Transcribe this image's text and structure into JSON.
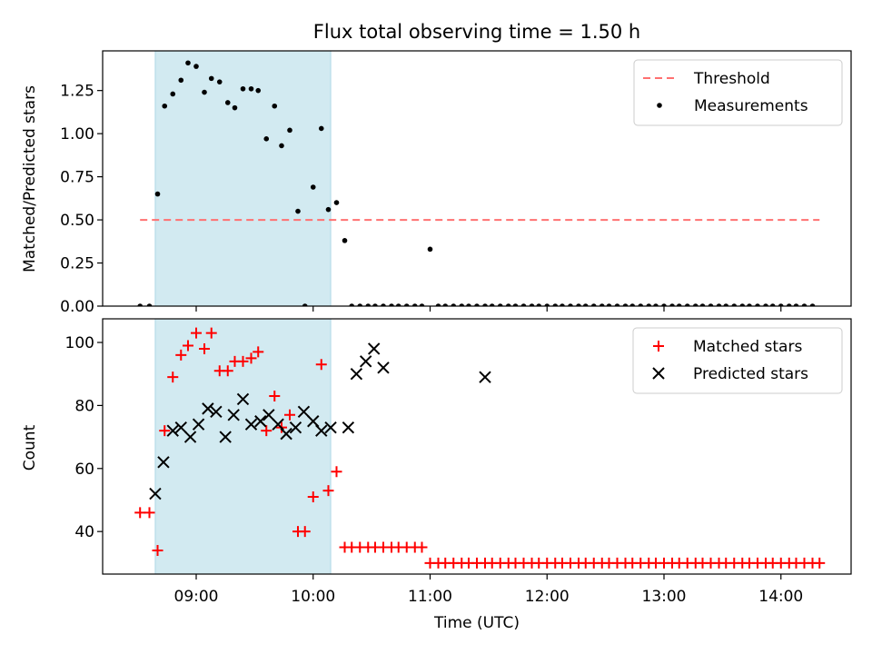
{
  "chart_data": {
    "title": "Flux total observing time = 1.50 h",
    "xlabel": "Time (UTC)",
    "x_ticks": [
      "09:00",
      "10:00",
      "11:00",
      "12:00",
      "13:00",
      "14:00"
    ],
    "x_tick_hours": [
      9,
      10,
      11,
      12,
      13,
      14
    ],
    "xlim_hours": [
      8.2,
      14.6
    ],
    "shaded_interval_hours": [
      8.65,
      10.15
    ],
    "colors": {
      "shade": "#add8e6",
      "threshold": "#ff7070",
      "matched": "#ff0000",
      "predicted": "#000000",
      "measurements": "#000000"
    },
    "panels": [
      {
        "type": "scatter",
        "ylabel": "Matched/Predicted stars",
        "ylim": [
          0,
          1.48
        ],
        "y_ticks": [
          "0.00",
          "0.25",
          "0.50",
          "0.75",
          "1.00",
          "1.25"
        ],
        "legend_position": "top-right",
        "series": [
          {
            "name": "Threshold",
            "type": "line",
            "style": "dashed",
            "x": [
              8.52,
              14.33
            ],
            "y": [
              0.5,
              0.5
            ]
          },
          {
            "name": "Measurements",
            "type": "scatter",
            "x": [
              8.52,
              8.6,
              8.67,
              8.73,
              8.8,
              8.87,
              8.93,
              9.0,
              9.07,
              9.13,
              9.2,
              9.27,
              9.33,
              9.4,
              9.47,
              9.53,
              9.6,
              9.67,
              9.73,
              9.8,
              9.87,
              9.93,
              10.0,
              10.07,
              10.13,
              10.2,
              10.27,
              10.33,
              10.4,
              10.47,
              10.53,
              10.6,
              10.67,
              10.73,
              10.8,
              10.87,
              10.93,
              11.0,
              11.07,
              11.13,
              11.2,
              11.27,
              11.33,
              11.4,
              11.47,
              11.53,
              11.6,
              11.67,
              11.73,
              11.8,
              11.87,
              11.93,
              12.0,
              12.07,
              12.13,
              12.2,
              12.27,
              12.33,
              12.4,
              12.47,
              12.53,
              12.6,
              12.67,
              12.73,
              12.8,
              12.87,
              12.93,
              13.0,
              13.07,
              13.13,
              13.2,
              13.27,
              13.33,
              13.4,
              13.47,
              13.53,
              13.6,
              13.67,
              13.73,
              13.8,
              13.87,
              13.93,
              14.0,
              14.07,
              14.13,
              14.2,
              14.27
            ],
            "y": [
              0,
              0,
              0.65,
              1.16,
              1.23,
              1.31,
              1.41,
              1.39,
              1.24,
              1.32,
              1.3,
              1.18,
              1.15,
              1.26,
              1.26,
              1.25,
              0.97,
              1.16,
              0.93,
              1.02,
              0.55,
              0,
              0.69,
              1.03,
              0.56,
              0.6,
              0.38,
              0,
              0,
              0,
              0,
              0,
              0,
              0,
              0,
              0,
              0,
              0.33,
              0,
              0,
              0,
              0,
              0,
              0,
              0,
              0,
              0,
              0,
              0,
              0,
              0,
              0,
              0,
              0,
              0,
              0,
              0,
              0,
              0,
              0,
              0,
              0,
              0,
              0,
              0,
              0,
              0,
              0,
              0,
              0,
              0,
              0,
              0,
              0,
              0,
              0,
              0,
              0,
              0,
              0,
              0,
              0,
              0,
              0,
              0,
              0,
              0
            ]
          }
        ]
      },
      {
        "type": "scatter",
        "ylabel": "Count",
        "ylim": [
          26.5,
          107.5
        ],
        "y_ticks": [
          "40",
          "60",
          "80",
          "100"
        ],
        "legend_position": "top-right",
        "series": [
          {
            "name": "Matched stars",
            "marker": "plus",
            "x": [
              8.52,
              8.6,
              8.67,
              8.73,
              8.8,
              8.87,
              8.93,
              9.0,
              9.07,
              9.13,
              9.2,
              9.27,
              9.33,
              9.4,
              9.47,
              9.53,
              9.6,
              9.67,
              9.73,
              9.8,
              9.87,
              9.93,
              10.0,
              10.07,
              10.13,
              10.2,
              10.27,
              10.33,
              10.4,
              10.47,
              10.53,
              10.6,
              10.67,
              10.73,
              10.8,
              10.87,
              10.93,
              11.0,
              11.07,
              11.13,
              11.2,
              11.27,
              11.33,
              11.4,
              11.47,
              11.53,
              11.6,
              11.67,
              11.73,
              11.8,
              11.87,
              11.93,
              12.0,
              12.07,
              12.13,
              12.2,
              12.27,
              12.33,
              12.4,
              12.47,
              12.53,
              12.6,
              12.67,
              12.73,
              12.8,
              12.87,
              12.93,
              13.0,
              13.07,
              13.13,
              13.2,
              13.27,
              13.33,
              13.4,
              13.47,
              13.53,
              13.6,
              13.67,
              13.73,
              13.8,
              13.87,
              13.93,
              14.0,
              14.07,
              14.13,
              14.2,
              14.27,
              14.33
            ],
            "y": [
              46,
              46,
              34,
              72,
              89,
              96,
              99,
              103,
              98,
              103,
              91,
              91,
              94,
              94,
              95,
              97,
              72,
              83,
              73,
              77,
              40,
              40,
              51,
              93,
              53,
              59,
              35,
              35,
              35,
              35,
              35,
              35,
              35,
              35,
              35,
              35,
              35,
              30,
              30,
              30,
              30,
              30,
              30,
              30,
              30,
              30,
              30,
              30,
              30,
              30,
              30,
              30,
              30,
              30,
              30,
              30,
              30,
              30,
              30,
              30,
              30,
              30,
              30,
              30,
              30,
              30,
              30,
              30,
              30,
              30,
              30,
              30,
              30,
              30,
              30,
              30,
              30,
              30,
              30,
              30,
              30,
              30,
              30,
              30,
              30,
              30,
              30,
              30
            ]
          },
          {
            "name": "Predicted stars",
            "marker": "x",
            "x": [
              8.65,
              8.72,
              8.8,
              8.87,
              8.95,
              9.02,
              9.1,
              9.17,
              9.25,
              9.32,
              9.4,
              9.47,
              9.55,
              9.62,
              9.7,
              9.77,
              9.85,
              9.92,
              10.0,
              10.07,
              10.15,
              10.3,
              10.37,
              10.45,
              10.52,
              10.6,
              11.47
            ],
            "y": [
              52,
              62,
              72,
              73,
              70,
              74,
              79,
              78,
              70,
              77,
              82,
              74,
              75,
              77,
              74,
              71,
              73,
              78,
              75,
              72,
              73,
              73,
              90,
              94,
              98,
              92,
              89
            ]
          }
        ]
      }
    ]
  }
}
